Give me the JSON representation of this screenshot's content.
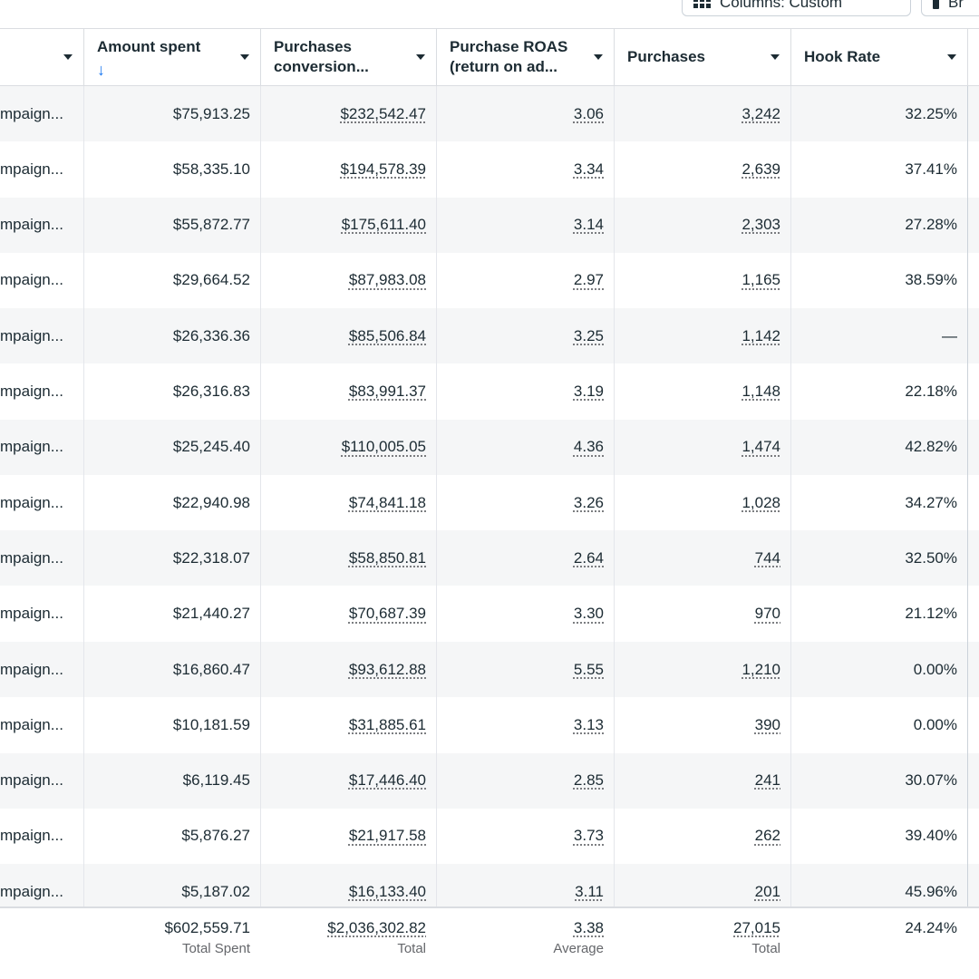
{
  "toolbar": {
    "columns_label": "Columns: Custom",
    "second_label": "Br"
  },
  "headers": [
    {
      "label": ""
    },
    {
      "label": "Amount spent",
      "sort_arrow": "↓"
    },
    {
      "label": "Purchases conversion..."
    },
    {
      "label": "Purchase ROAS (return on ad..."
    },
    {
      "label": "Purchases"
    },
    {
      "label": "Hook Rate"
    }
  ],
  "rows": [
    {
      "name": "mpaign...",
      "spent": "$75,913.25",
      "conv": "$232,542.47",
      "roas": "3.06",
      "purchases": "3,242",
      "hook": "32.25%"
    },
    {
      "name": "mpaign...",
      "spent": "$58,335.10",
      "conv": "$194,578.39",
      "roas": "3.34",
      "purchases": "2,639",
      "hook": "37.41%"
    },
    {
      "name": "mpaign...",
      "spent": "$55,872.77",
      "conv": "$175,611.40",
      "roas": "3.14",
      "purchases": "2,303",
      "hook": "27.28%"
    },
    {
      "name": "mpaign...",
      "spent": "$29,664.52",
      "conv": "$87,983.08",
      "roas": "2.97",
      "purchases": "1,165",
      "hook": "38.59%"
    },
    {
      "name": "mpaign...",
      "spent": "$26,336.36",
      "conv": "$85,506.84",
      "roas": "3.25",
      "purchases": "1,142",
      "hook": "—"
    },
    {
      "name": "mpaign...",
      "spent": "$26,316.83",
      "conv": "$83,991.37",
      "roas": "3.19",
      "purchases": "1,148",
      "hook": "22.18%"
    },
    {
      "name": "mpaign...",
      "spent": "$25,245.40",
      "conv": "$110,005.05",
      "roas": "4.36",
      "purchases": "1,474",
      "hook": "42.82%"
    },
    {
      "name": "mpaign...",
      "spent": "$22,940.98",
      "conv": "$74,841.18",
      "roas": "3.26",
      "purchases": "1,028",
      "hook": "34.27%"
    },
    {
      "name": "mpaign...",
      "spent": "$22,318.07",
      "conv": "$58,850.81",
      "roas": "2.64",
      "purchases": "744",
      "hook": "32.50%"
    },
    {
      "name": "mpaign...",
      "spent": "$21,440.27",
      "conv": "$70,687.39",
      "roas": "3.30",
      "purchases": "970",
      "hook": "21.12%"
    },
    {
      "name": "mpaign...",
      "spent": "$16,860.47",
      "conv": "$93,612.88",
      "roas": "5.55",
      "purchases": "1,210",
      "hook": "0.00%"
    },
    {
      "name": "mpaign...",
      "spent": "$10,181.59",
      "conv": "$31,885.61",
      "roas": "3.13",
      "purchases": "390",
      "hook": "0.00%"
    },
    {
      "name": "mpaign...",
      "spent": "$6,119.45",
      "conv": "$17,446.40",
      "roas": "2.85",
      "purchases": "241",
      "hook": "30.07%"
    },
    {
      "name": "mpaign...",
      "spent": "$5,876.27",
      "conv": "$21,917.58",
      "roas": "3.73",
      "purchases": "262",
      "hook": "39.40%"
    },
    {
      "name": "mpaign...",
      "spent": "$5,187.02",
      "conv": "$16,133.40",
      "roas": "3.11",
      "purchases": "201",
      "hook": "45.96%"
    }
  ],
  "totals": {
    "spent": {
      "value": "$602,559.71",
      "label": "Total Spent"
    },
    "conv": {
      "value": "$2,036,302.82",
      "label": "Total"
    },
    "roas": {
      "value": "3.38",
      "label": "Average"
    },
    "purchases": {
      "value": "27,015",
      "label": "Total"
    },
    "hook": {
      "value": "24.24%",
      "label": ""
    }
  }
}
